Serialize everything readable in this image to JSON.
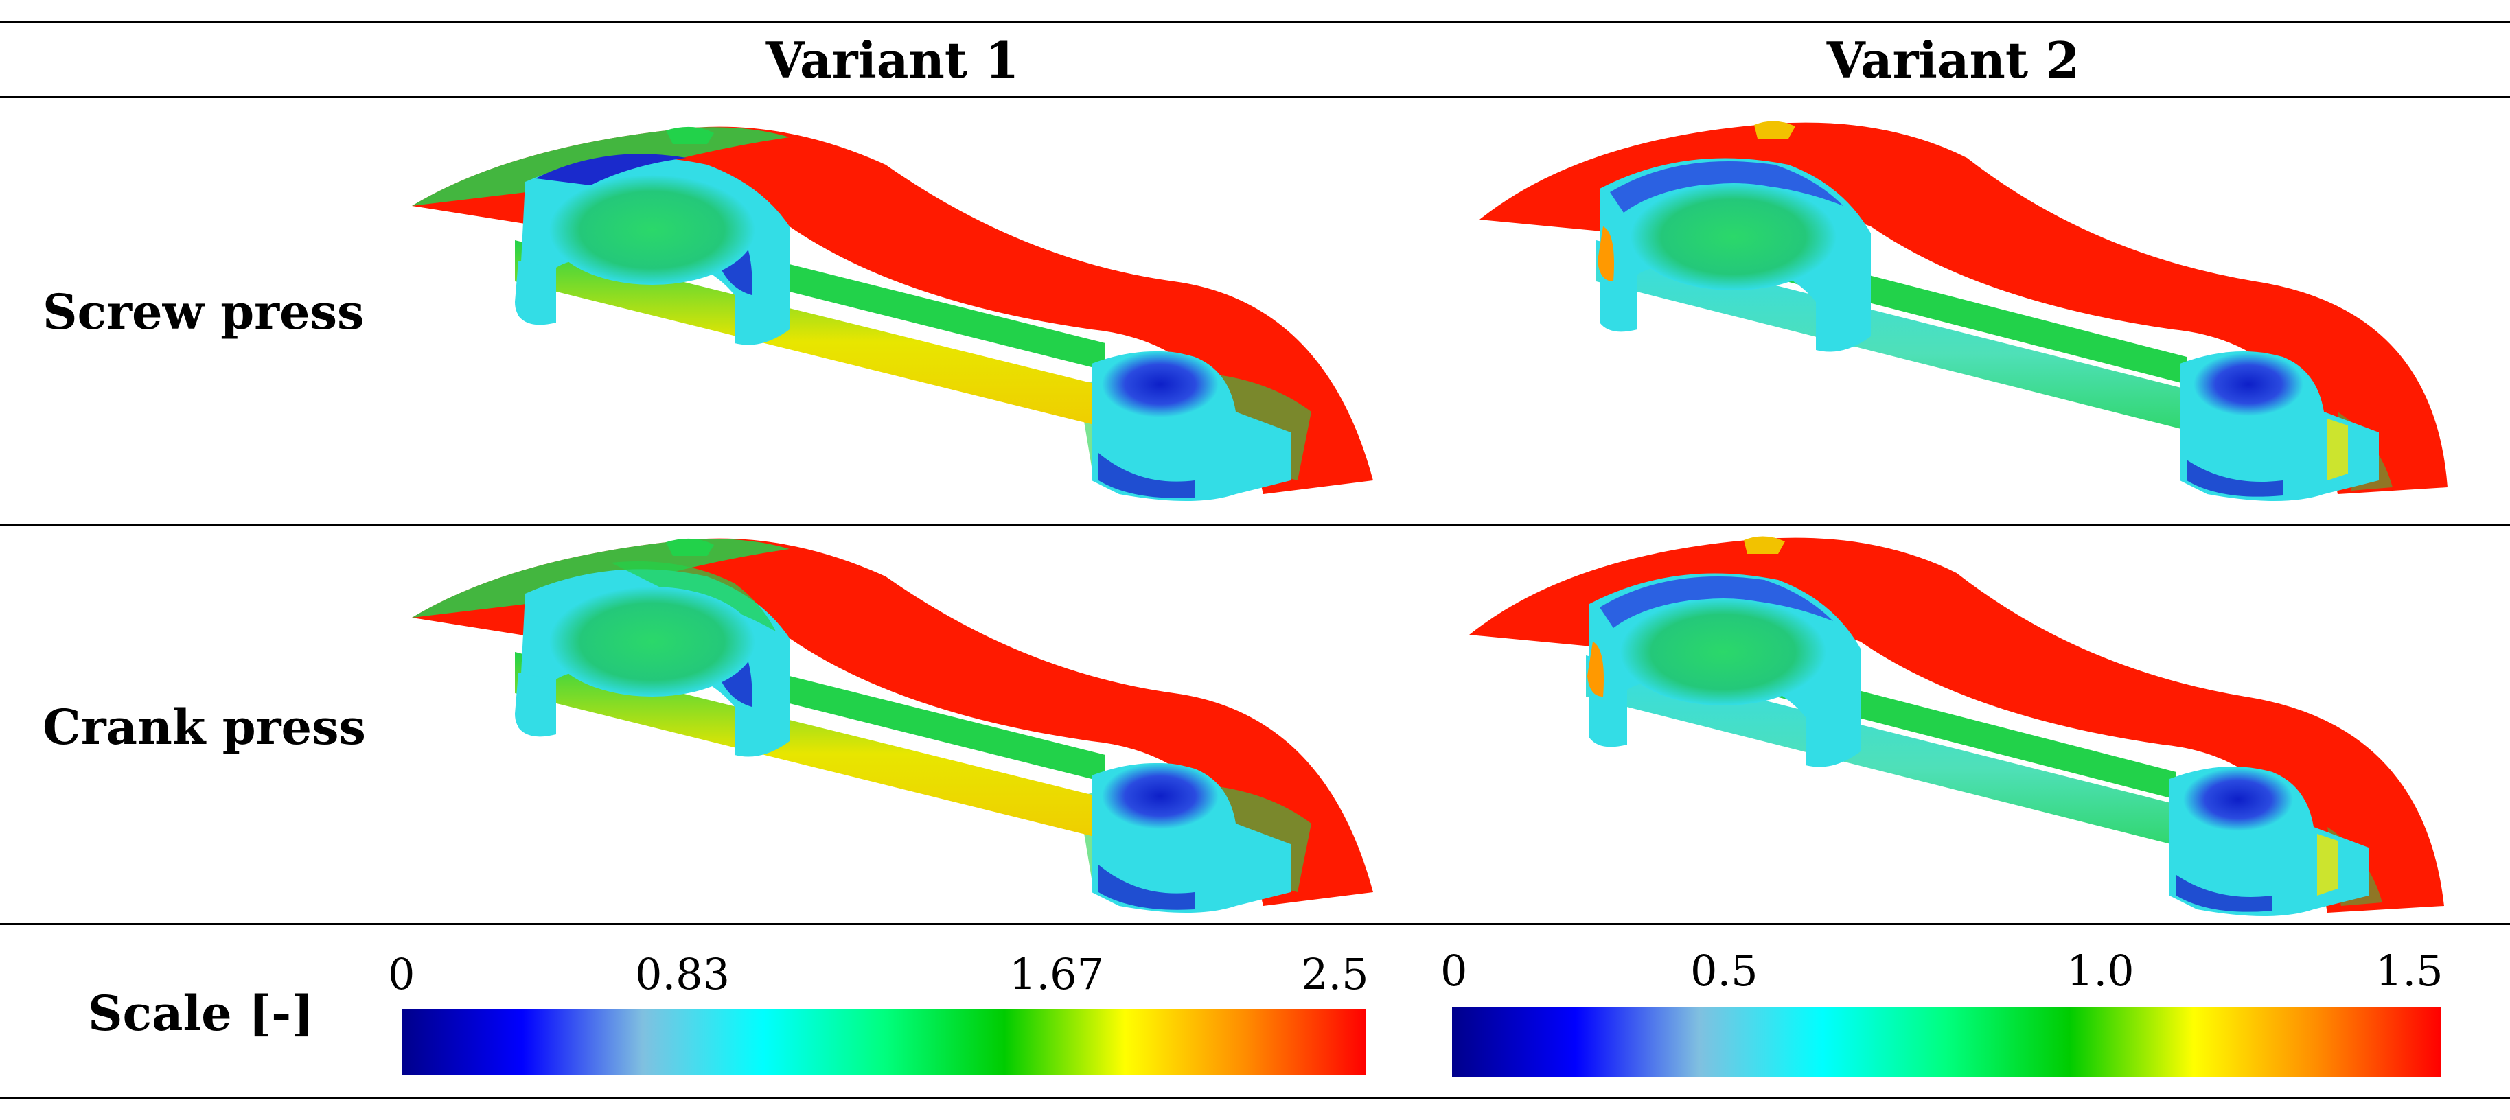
{
  "header": {
    "col1": "Variant 1",
    "col2": "Variant 2"
  },
  "rows": [
    {
      "label": "Screw press"
    },
    {
      "label": "Crank press"
    }
  ],
  "scale": {
    "label": "Scale [-]",
    "variant1_ticks": [
      "0",
      "0.83",
      "1.67",
      "2.5"
    ],
    "variant2_ticks": [
      "0",
      "0.5",
      "1.0",
      "1.5"
    ],
    "colormap": [
      "#00008b",
      "#0000ff",
      "#80c0e0",
      "#00ffff",
      "#00ff7f",
      "#00cc00",
      "#ffff00",
      "#ff8c00",
      "#ff0000"
    ]
  },
  "colors": {
    "flash": "#ff1a00",
    "body": "#33dde6",
    "dark_blue": "#1a2acc",
    "green": "#22d24a",
    "yellow": "#f2e600",
    "orange": "#ff9900"
  }
}
